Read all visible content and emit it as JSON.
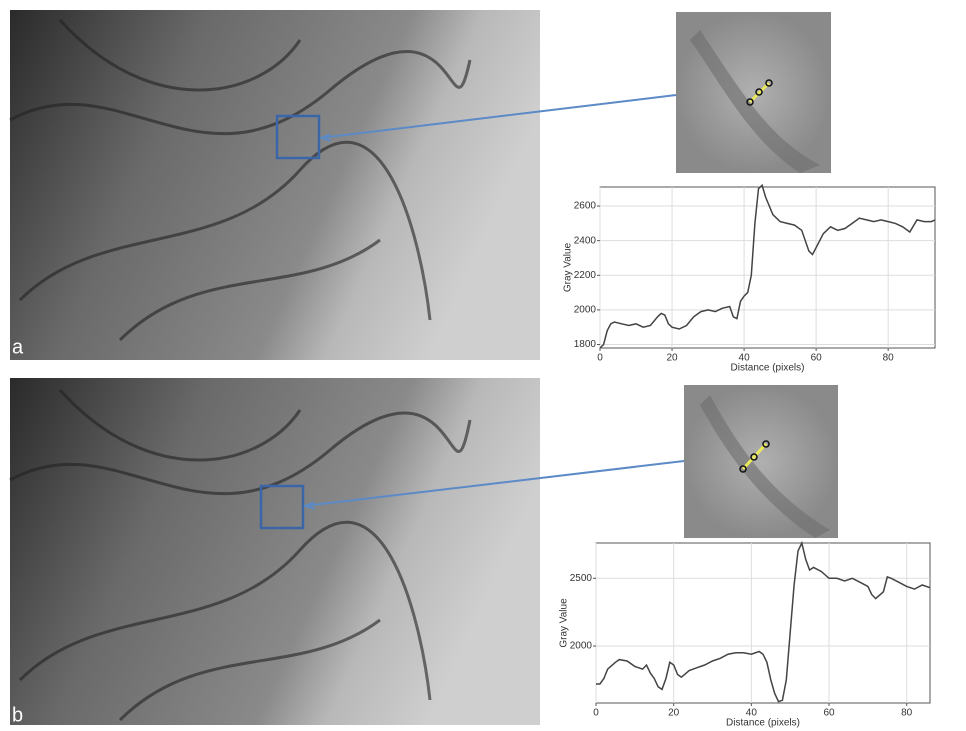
{
  "chart_data": [
    {
      "type": "line",
      "panel_label": "a",
      "x_label": "Distance (pixels)",
      "y_label": "Gray Value",
      "grid": true,
      "color": "#444444",
      "x": [
        0,
        1,
        2,
        3,
        4,
        6,
        8,
        10,
        12,
        14,
        16,
        17,
        18,
        19,
        20,
        22,
        24,
        26,
        28,
        30,
        32,
        34,
        36,
        37,
        38,
        39,
        40,
        41,
        42,
        43,
        44,
        45,
        46,
        48,
        50,
        52,
        54,
        56,
        58,
        59,
        60,
        62,
        64,
        66,
        68,
        70,
        72,
        74,
        76,
        78,
        80,
        82,
        84,
        86,
        88,
        90,
        92,
        93
      ],
      "values": [
        1780,
        1800,
        1880,
        1920,
        1930,
        1920,
        1910,
        1920,
        1900,
        1910,
        1960,
        1980,
        1970,
        1920,
        1900,
        1890,
        1910,
        1960,
        1990,
        2000,
        1990,
        2010,
        2020,
        1960,
        1950,
        2050,
        2080,
        2100,
        2200,
        2500,
        2700,
        2720,
        2650,
        2550,
        2510,
        2500,
        2490,
        2460,
        2340,
        2320,
        2360,
        2440,
        2480,
        2460,
        2470,
        2500,
        2530,
        2520,
        2510,
        2520,
        2510,
        2500,
        2480,
        2450,
        2520,
        2510,
        2510,
        2520
      ],
      "xlim": [
        0,
        93
      ],
      "xticks": [
        0,
        20,
        40,
        60,
        80
      ],
      "ylim": [
        1780,
        2710
      ],
      "yticks": [
        1800,
        2000,
        2200,
        2400,
        2600
      ]
    },
    {
      "type": "line",
      "panel_label": "b",
      "x_label": "Distance (pixels)",
      "y_label": "Gray Value",
      "grid": true,
      "color": "#444444",
      "x": [
        0,
        1,
        2,
        3,
        5,
        6,
        8,
        10,
        12,
        13,
        14,
        15,
        16,
        17,
        18,
        19,
        20,
        21,
        22,
        24,
        26,
        28,
        30,
        32,
        34,
        36,
        38,
        40,
        42,
        43,
        44,
        45,
        46,
        47,
        48,
        49,
        50,
        51,
        52,
        53,
        54,
        55,
        56,
        58,
        60,
        62,
        64,
        66,
        68,
        70,
        71,
        72,
        74,
        75,
        76,
        78,
        80,
        82,
        84,
        86
      ],
      "values": [
        1720,
        1720,
        1760,
        1830,
        1880,
        1900,
        1890,
        1850,
        1830,
        1860,
        1800,
        1760,
        1700,
        1680,
        1760,
        1880,
        1860,
        1790,
        1770,
        1820,
        1840,
        1860,
        1890,
        1910,
        1940,
        1950,
        1950,
        1940,
        1960,
        1940,
        1880,
        1750,
        1650,
        1590,
        1600,
        1750,
        2100,
        2450,
        2700,
        2760,
        2640,
        2560,
        2580,
        2550,
        2500,
        2500,
        2480,
        2500,
        2470,
        2440,
        2380,
        2350,
        2400,
        2510,
        2500,
        2470,
        2440,
        2420,
        2450,
        2430
      ],
      "xlim": [
        0,
        86
      ],
      "xticks": [
        0,
        20,
        40,
        60,
        80
      ],
      "ylim": [
        1580,
        2760
      ],
      "yticks": [
        2000,
        2500
      ]
    }
  ]
}
